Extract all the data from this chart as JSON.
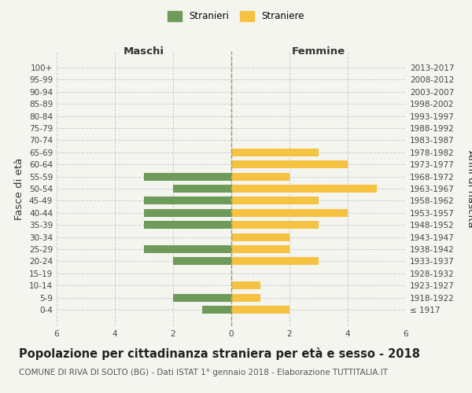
{
  "age_groups": [
    "100+",
    "95-99",
    "90-94",
    "85-89",
    "80-84",
    "75-79",
    "70-74",
    "65-69",
    "60-64",
    "55-59",
    "50-54",
    "45-49",
    "40-44",
    "35-39",
    "30-34",
    "25-29",
    "20-24",
    "15-19",
    "10-14",
    "5-9",
    "0-4"
  ],
  "birth_years": [
    "≤ 1917",
    "1918-1922",
    "1923-1927",
    "1928-1932",
    "1933-1937",
    "1938-1942",
    "1943-1947",
    "1948-1952",
    "1953-1957",
    "1958-1962",
    "1963-1967",
    "1968-1972",
    "1973-1977",
    "1978-1982",
    "1983-1987",
    "1988-1992",
    "1993-1997",
    "1998-2002",
    "2003-2007",
    "2008-2012",
    "2013-2017"
  ],
  "maschi": [
    0,
    0,
    0,
    0,
    0,
    0,
    0,
    0,
    0,
    3,
    2,
    3,
    3,
    3,
    0,
    3,
    2,
    0,
    0,
    2,
    1
  ],
  "femmine": [
    0,
    0,
    0,
    0,
    0,
    0,
    0,
    3,
    4,
    2,
    5,
    3,
    4,
    3,
    2,
    2,
    3,
    0,
    1,
    1,
    2
  ],
  "maschi_color": "#6e9b5a",
  "femmine_color": "#f5c242",
  "background_color": "#f5f5f0",
  "grid_color": "#cccccc",
  "center_line_color": "#999966",
  "title": "Popolazione per cittadinanza straniera per età e sesso - 2018",
  "subtitle": "COMUNE DI RIVA DI SOLTO (BG) - Dati ISTAT 1° gennaio 2018 - Elaborazione TUTTITALIA.IT",
  "xlabel_left": "Maschi",
  "xlabel_right": "Femmine",
  "ylabel_left": "Fasce di età",
  "ylabel_right": "Anni di nascita",
  "legend_stranieri": "Stranieri",
  "legend_straniere": "Straniere",
  "xlim": 6,
  "title_fontsize": 10.5,
  "subtitle_fontsize": 7.5,
  "tick_fontsize": 7.5,
  "label_fontsize": 9.5
}
